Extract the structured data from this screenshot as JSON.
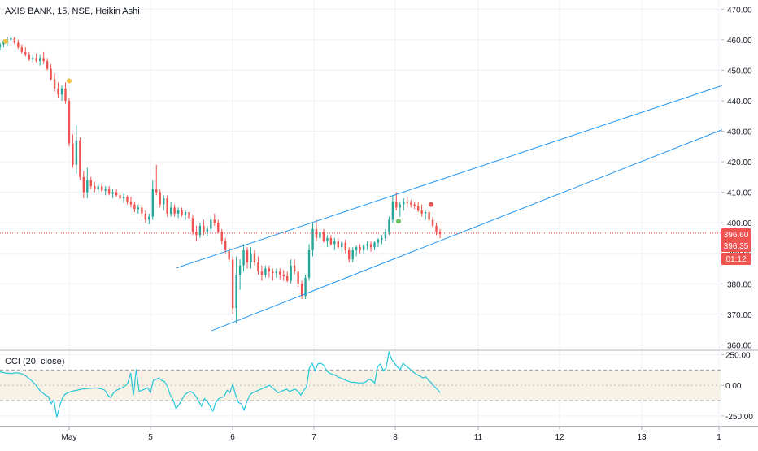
{
  "header": {
    "title": "AXIS BANK, 15, NSE, Heikin Ashi"
  },
  "cci": {
    "title": "CCI (20, close)",
    "ticks": [
      250,
      0,
      -250
    ],
    "tick_labels": [
      "250.00",
      "0.00",
      "-250.00"
    ],
    "band": [
      -125,
      125
    ],
    "range": [
      -330,
      280
    ],
    "values": [
      110,
      105,
      100,
      98,
      96,
      100,
      102,
      98,
      92,
      78,
      60,
      40,
      18,
      -10,
      -40,
      -60,
      -80,
      -90,
      -150,
      -120,
      -260,
      -170,
      -100,
      -70,
      -60,
      -50,
      -45,
      -40,
      -35,
      -30,
      -28,
      -25,
      -25,
      -22,
      -22,
      -25,
      -30,
      -40,
      -80,
      -100,
      -60,
      -40,
      -30,
      -20,
      -5,
      20,
      100,
      -80,
      130,
      -50,
      -40,
      -30,
      -20,
      -60,
      40,
      50,
      60,
      40,
      30,
      -10,
      -80,
      -120,
      -190,
      -160,
      -120,
      -80,
      -60,
      -50,
      -60,
      -90,
      -130,
      -170,
      -110,
      -130,
      -170,
      -210,
      -140,
      -110,
      -100,
      -90,
      -40,
      -60,
      10,
      -80,
      -140,
      -150,
      -200,
      -130,
      -80,
      -60,
      -50,
      -40,
      -30,
      -20,
      -10,
      0,
      -20,
      -40,
      -60,
      -50,
      -40,
      -30,
      -50,
      -40,
      -30,
      -50,
      -80,
      -40,
      -10,
      140,
      180,
      120,
      175,
      180,
      165,
      120,
      100,
      90,
      85,
      70,
      60,
      50,
      40,
      30,
      25,
      25,
      20,
      20,
      20,
      30,
      50,
      40,
      20,
      150,
      175,
      120,
      140,
      270,
      210,
      180,
      150,
      130,
      180,
      160,
      140,
      120,
      100,
      85,
      75,
      60,
      70,
      40,
      20,
      -10,
      -30,
      -60
    ],
    "x_start": 0,
    "x_end": 541
  },
  "chart_data": {
    "type": "candlestick",
    "title": "AXIS BANK, 15, NSE, Heikin Ashi",
    "price_axis": {
      "ticks": [
        360,
        370,
        380,
        390,
        400,
        410,
        420,
        430,
        440,
        450,
        460,
        470
      ],
      "range": [
        358.5,
        473
      ]
    },
    "time_axis": {
      "labels": [
        "May",
        "5",
        "6",
        "7",
        "8",
        "11",
        "12",
        "13",
        "1"
      ],
      "positions": [
        85,
        185,
        286,
        386,
        486,
        588,
        688,
        789,
        884
      ]
    },
    "series": [
      {
        "values": [
          [
            457.5,
            459.0,
            456.5,
            458.5
          ],
          [
            458.5,
            460.0,
            457.5,
            459.5
          ],
          [
            459.0,
            461.0,
            458.0,
            460.0
          ],
          [
            460.0,
            461.5,
            459.0,
            460.5
          ],
          [
            460.5,
            461.0,
            458.5,
            459.0
          ],
          [
            459.0,
            460.0,
            457.0,
            457.5
          ],
          [
            457.5,
            458.5,
            455.5,
            456.0
          ],
          [
            456.0,
            457.5,
            454.5,
            455.0
          ],
          [
            455.0,
            456.0,
            453.0,
            453.5
          ],
          [
            453.5,
            455.0,
            452.5,
            454.0
          ],
          [
            454.0,
            455.5,
            452.5,
            453.0
          ],
          [
            453.0,
            455.0,
            451.5,
            454.0
          ],
          [
            454.0,
            456.0,
            452.0,
            453.0
          ],
          [
            453.0,
            454.0,
            450.0,
            450.5
          ],
          [
            450.5,
            452.0,
            446.5,
            447.0
          ],
          [
            447.0,
            449.0,
            443.0,
            444.0
          ],
          [
            444.0,
            446.0,
            441.0,
            442.0
          ],
          [
            442.0,
            445.0,
            440.0,
            444.0
          ],
          [
            444.0,
            446.0,
            439.0,
            440.0
          ],
          [
            440.0,
            441.0,
            425.0,
            426.0
          ],
          [
            426.0,
            429.0,
            418.0,
            419.0
          ],
          [
            419.0,
            432.0,
            416.0,
            427.0
          ],
          [
            427.0,
            428.0,
            414.0,
            415.0
          ],
          [
            415.0,
            417.0,
            408.0,
            410.0
          ],
          [
            410.0,
            418.0,
            408.0,
            414.0
          ],
          [
            414.0,
            415.0,
            411.0,
            412.0
          ],
          [
            412.0,
            413.5,
            410.0,
            411.0
          ],
          [
            411.0,
            413.0,
            409.5,
            412.0
          ],
          [
            412.0,
            413.0,
            410.0,
            410.5
          ],
          [
            410.5,
            412.0,
            409.0,
            411.0
          ],
          [
            411.0,
            412.0,
            409.0,
            409.5
          ],
          [
            409.5,
            411.0,
            408.0,
            410.0
          ],
          [
            410.0,
            411.0,
            408.5,
            409.0
          ],
          [
            409.0,
            410.0,
            407.5,
            408.0
          ],
          [
            408.0,
            409.5,
            406.5,
            408.5
          ],
          [
            408.5,
            409.0,
            406.0,
            407.0
          ],
          [
            407.0,
            408.5,
            405.0,
            406.0
          ],
          [
            406.0,
            407.0,
            403.5,
            404.5
          ],
          [
            404.5,
            406.0,
            403.0,
            405.0
          ],
          [
            405.0,
            406.0,
            402.0,
            403.0
          ],
          [
            403.0,
            404.0,
            400.0,
            401.0
          ],
          [
            401.0,
            403.0,
            399.5,
            402.0
          ],
          [
            402.0,
            414.0,
            401.0,
            411.0
          ],
          [
            411.0,
            419.0,
            409.0,
            410.0
          ],
          [
            410.0,
            411.0,
            405.0,
            406.0
          ],
          [
            406.0,
            409.0,
            404.0,
            408.0
          ],
          [
            408.0,
            409.0,
            402.0,
            403.0
          ],
          [
            403.0,
            407.0,
            402.0,
            405.0
          ],
          [
            405.0,
            406.0,
            402.0,
            403.0
          ],
          [
            403.0,
            405.0,
            401.5,
            404.0
          ],
          [
            404.0,
            405.0,
            402.0,
            402.5
          ],
          [
            402.5,
            404.0,
            401.0,
            403.5
          ],
          [
            403.5,
            404.5,
            401.0,
            401.5
          ],
          [
            401.5,
            402.5,
            396.0,
            397.0
          ],
          [
            397.0,
            399.0,
            394.0,
            396.0
          ],
          [
            396.0,
            400.0,
            395.0,
            399.0
          ],
          [
            399.0,
            401.0,
            396.0,
            397.0
          ],
          [
            397.0,
            399.0,
            395.5,
            398.0
          ],
          [
            398.0,
            402.0,
            397.0,
            401.0
          ],
          [
            401.0,
            403.0,
            399.0,
            400.0
          ],
          [
            400.0,
            401.0,
            396.5,
            397.0
          ],
          [
            397.0,
            398.0,
            393.0,
            394.0
          ],
          [
            394.0,
            395.0,
            390.0,
            391.0
          ],
          [
            391.0,
            392.0,
            387.0,
            388.0
          ],
          [
            388.0,
            389.0,
            370.0,
            372.0
          ],
          [
            372.0,
            389.0,
            367.0,
            383.0
          ],
          [
            383.0,
            388.0,
            378.0,
            386.0
          ],
          [
            386.0,
            393.0,
            384.0,
            391.0
          ],
          [
            391.0,
            392.0,
            385.0,
            387.0
          ],
          [
            387.0,
            392.0,
            385.0,
            390.0
          ],
          [
            390.0,
            391.0,
            386.0,
            387.0
          ],
          [
            387.0,
            389.0,
            383.0,
            384.0
          ],
          [
            384.0,
            386.0,
            381.0,
            383.0
          ],
          [
            383.0,
            386.0,
            382.0,
            385.0
          ],
          [
            385.0,
            386.0,
            382.0,
            384.0
          ],
          [
            384.0,
            385.0,
            381.0,
            383.5
          ],
          [
            383.5,
            385.0,
            382.0,
            384.0
          ],
          [
            384.0,
            385.0,
            381.5,
            383.0
          ],
          [
            383.0,
            384.5,
            381.0,
            382.5
          ],
          [
            382.5,
            384.0,
            380.5,
            381.0
          ],
          [
            381.0,
            388.0,
            380.0,
            386.0
          ],
          [
            386.0,
            388.0,
            383.0,
            384.0
          ],
          [
            384.0,
            385.0,
            379.0,
            380.0
          ],
          [
            380.0,
            381.0,
            375.0,
            376.0
          ],
          [
            376.0,
            383.0,
            375.0,
            382.0
          ],
          [
            382.0,
            393.0,
            381.0,
            391.0
          ],
          [
            391.0,
            400.0,
            389.0,
            398.0
          ],
          [
            398.0,
            401.0,
            394.0,
            395.0
          ],
          [
            395.0,
            398.0,
            393.0,
            397.0
          ],
          [
            397.0,
            398.0,
            393.5,
            394.0
          ],
          [
            394.0,
            396.0,
            392.0,
            395.0
          ],
          [
            395.0,
            396.0,
            392.5,
            393.0
          ],
          [
            393.0,
            395.0,
            391.0,
            394.0
          ],
          [
            394.0,
            395.0,
            391.5,
            392.0
          ],
          [
            392.0,
            394.0,
            390.5,
            393.5
          ],
          [
            393.5,
            394.5,
            390.0,
            391.0
          ],
          [
            391.0,
            392.0,
            387.0,
            388.0
          ],
          [
            388.0,
            392.0,
            387.0,
            391.0
          ],
          [
            391.0,
            392.5,
            389.0,
            392.0
          ],
          [
            392.0,
            393.0,
            390.0,
            391.0
          ],
          [
            391.0,
            393.0,
            390.0,
            392.5
          ],
          [
            392.5,
            394.0,
            391.0,
            393.0
          ],
          [
            393.0,
            394.0,
            390.5,
            392.0
          ],
          [
            392.0,
            394.0,
            391.0,
            393.5
          ],
          [
            393.5,
            395.0,
            392.0,
            394.5
          ],
          [
            394.5,
            396.0,
            393.0,
            395.0
          ],
          [
            395.0,
            398.0,
            394.0,
            397.0
          ],
          [
            397.0,
            402.0,
            396.0,
            401.0
          ],
          [
            401.0,
            409.0,
            400.0,
            407.0
          ],
          [
            407.0,
            410.0,
            404.0,
            405.0
          ],
          [
            405.0,
            407.0,
            402.0,
            406.0
          ],
          [
            406.0,
            408.0,
            404.0,
            407.0
          ],
          [
            407.0,
            408.5,
            405.0,
            406.5
          ],
          [
            406.5,
            407.5,
            405.0,
            406.0
          ],
          [
            406.0,
            407.0,
            404.5,
            405.5
          ],
          [
            405.5,
            407.0,
            403.5,
            404.0
          ],
          [
            404.0,
            406.0,
            402.0,
            403.0
          ],
          [
            403.0,
            404.0,
            401.0,
            403.5
          ],
          [
            403.5,
            404.0,
            400.5,
            401.0
          ],
          [
            401.0,
            402.0,
            398.5,
            399.0
          ],
          [
            399.0,
            400.0,
            396.0,
            397.0
          ],
          [
            397.0,
            398.0,
            395.0,
            396.35
          ]
        ]
      }
    ],
    "last_price": 396.35,
    "price_line": 396.6,
    "price_labels": [
      "396.60",
      "396.35"
    ],
    "countdown": "01:12",
    "dots": [
      {
        "x": 7,
        "y": 459.5,
        "color": "#f5c242"
      },
      {
        "x": 85,
        "y": 446.5,
        "color": "#f5c242"
      },
      {
        "x": 490,
        "y": 400.5,
        "color": "#69c062"
      },
      {
        "x": 530,
        "y": 406.0,
        "color": "#e05a5a"
      }
    ],
    "channel_lines": [
      {
        "x1": 217,
        "y1": 385.2,
        "x2": 888,
        "y2": 445.0
      },
      {
        "x1": 260,
        "y1": 364.6,
        "x2": 888,
        "y2": 430.5
      }
    ],
    "colors": {
      "up": "#26a69a",
      "down": "#ef5350",
      "channel": "#2196f3",
      "cci_line": "#26c6da",
      "cci_band": "#f7f2e5",
      "price_line": "#e53935"
    }
  }
}
